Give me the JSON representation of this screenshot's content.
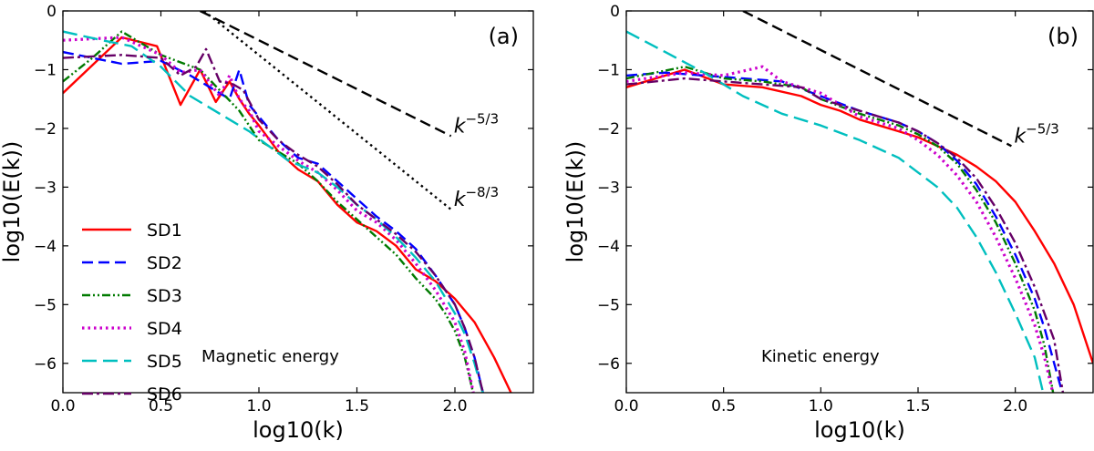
{
  "chart_data": [
    {
      "type": "line",
      "panel_label": "(a)",
      "annotation": "Magnetic energy",
      "xlabel": "log10(k)",
      "ylabel": "log10(E(k))",
      "xlim": [
        0.0,
        2.4
      ],
      "ylim": [
        -6.5,
        0.0
      ],
      "xticks": [
        0.0,
        0.5,
        1.0,
        1.5,
        2.0
      ],
      "yticks": [
        0,
        -1,
        -2,
        -3,
        -4,
        -5,
        -6
      ],
      "xtick_labels": [
        "0.0",
        "0.5",
        "1.0",
        "1.5",
        "2.0"
      ],
      "ytick_labels": [
        "0",
        "−1",
        "−2",
        "−3",
        "−4",
        "−5",
        "−6"
      ],
      "legend": {
        "position": "lower-left"
      },
      "series": [
        {
          "name": "SD1",
          "color": "#ff0000",
          "style": "solid",
          "x": [
            0.0,
            0.3,
            0.48,
            0.6,
            0.7,
            0.78,
            0.85,
            0.9,
            0.95,
            1.0,
            1.1,
            1.2,
            1.3,
            1.4,
            1.5,
            1.6,
            1.7,
            1.8,
            1.9,
            2.0,
            2.1,
            2.2,
            2.3
          ],
          "y": [
            -1.4,
            -0.45,
            -0.6,
            -1.6,
            -1.0,
            -1.55,
            -1.2,
            -1.5,
            -1.75,
            -1.95,
            -2.4,
            -2.7,
            -2.9,
            -3.3,
            -3.6,
            -3.75,
            -4.0,
            -4.4,
            -4.6,
            -4.9,
            -5.3,
            -5.9,
            -6.6
          ]
        },
        {
          "name": "SD2",
          "color": "#0000ff",
          "style": "dashed",
          "x": [
            0.0,
            0.3,
            0.5,
            0.65,
            0.75,
            0.85,
            0.9,
            0.95,
            1.0,
            1.1,
            1.2,
            1.3,
            1.4,
            1.5,
            1.6,
            1.7,
            1.8,
            1.9,
            2.0,
            2.05,
            2.1,
            2.15
          ],
          "y": [
            -0.7,
            -0.9,
            -0.85,
            -1.1,
            -1.3,
            -1.5,
            -1.0,
            -1.6,
            -1.8,
            -2.2,
            -2.5,
            -2.6,
            -2.9,
            -3.2,
            -3.5,
            -3.75,
            -4.05,
            -4.5,
            -5.0,
            -5.4,
            -5.9,
            -6.6
          ]
        },
        {
          "name": "SD3",
          "color": "#007a00",
          "style": "dashdotdot",
          "x": [
            0.0,
            0.15,
            0.3,
            0.5,
            0.7,
            0.9,
            1.0,
            1.1,
            1.2,
            1.3,
            1.4,
            1.5,
            1.6,
            1.7,
            1.8,
            1.9,
            1.95,
            2.0,
            2.05,
            2.1
          ],
          "y": [
            -1.2,
            -0.8,
            -0.35,
            -0.75,
            -1.0,
            -1.7,
            -2.2,
            -2.4,
            -2.6,
            -2.9,
            -3.25,
            -3.55,
            -3.85,
            -4.15,
            -4.55,
            -4.9,
            -5.15,
            -5.45,
            -5.9,
            -6.6
          ]
        },
        {
          "name": "SD4",
          "color": "#cc00cc",
          "style": "dotted",
          "x": [
            0.0,
            0.3,
            0.5,
            0.6,
            0.7,
            0.8,
            0.85,
            0.9,
            0.95,
            1.0,
            1.1,
            1.2,
            1.3,
            1.4,
            1.5,
            1.6,
            1.7,
            1.8,
            1.9,
            2.0,
            2.05,
            2.1
          ],
          "y": [
            -0.5,
            -0.45,
            -0.75,
            -1.05,
            -1.0,
            -1.45,
            -1.1,
            -1.5,
            -1.7,
            -2.05,
            -2.3,
            -2.55,
            -2.75,
            -3.05,
            -3.4,
            -3.6,
            -3.9,
            -4.3,
            -4.75,
            -5.3,
            -5.8,
            -6.6
          ]
        },
        {
          "name": "SD5",
          "color": "#00bfbf",
          "style": "longdash",
          "x": [
            0.0,
            0.2,
            0.35,
            0.5,
            0.65,
            0.8,
            0.95,
            1.05,
            1.15,
            1.3,
            1.4,
            1.5,
            1.6,
            1.7,
            1.8,
            1.9,
            2.0,
            2.05,
            2.1,
            2.15
          ],
          "y": [
            -0.35,
            -0.5,
            -0.6,
            -0.95,
            -1.45,
            -1.75,
            -2.05,
            -2.3,
            -2.55,
            -2.75,
            -3.0,
            -3.3,
            -3.55,
            -3.85,
            -4.2,
            -4.6,
            -5.15,
            -5.5,
            -6.0,
            -6.6
          ]
        },
        {
          "name": "SD6",
          "color": "#660066",
          "style": "dashdot",
          "x": [
            0.0,
            0.3,
            0.5,
            0.6,
            0.68,
            0.73,
            0.8,
            0.87,
            0.92,
            1.0,
            1.1,
            1.2,
            1.3,
            1.4,
            1.5,
            1.6,
            1.7,
            1.8,
            1.9,
            2.0,
            2.05,
            2.1,
            2.15
          ],
          "y": [
            -0.8,
            -0.75,
            -0.8,
            -1.1,
            -0.95,
            -0.65,
            -1.2,
            -1.25,
            -1.35,
            -1.85,
            -2.2,
            -2.45,
            -2.65,
            -2.95,
            -3.3,
            -3.55,
            -3.8,
            -4.1,
            -4.5,
            -5.0,
            -5.4,
            -5.9,
            -6.6
          ]
        }
      ],
      "reference_lines": [
        {
          "label_base": "k",
          "label_exp": "−5/3",
          "style": "dashed",
          "x": [
            0.7,
            1.98
          ],
          "y": [
            0.0,
            -2.13
          ]
        },
        {
          "label_base": "k",
          "label_exp": "−8/3",
          "style": "dotted",
          "x": [
            0.72,
            1.98
          ],
          "y": [
            0.0,
            -3.38
          ]
        }
      ]
    },
    {
      "type": "line",
      "panel_label": "(b)",
      "annotation": "Kinetic energy",
      "xlabel": "log10(k)",
      "ylabel": "log10(E(k))",
      "xlim": [
        0.0,
        2.4
      ],
      "ylim": [
        -6.5,
        0.0
      ],
      "xticks": [
        0.0,
        0.5,
        1.0,
        1.5,
        2.0
      ],
      "yticks": [
        0,
        -1,
        -2,
        -3,
        -4,
        -5,
        -6
      ],
      "xtick_labels": [
        "0.0",
        "0.5",
        "1.0",
        "1.5",
        "2.0"
      ],
      "ytick_labels": [
        "0",
        "−1",
        "−2",
        "−3",
        "−4",
        "−5",
        "−6"
      ],
      "series": [
        {
          "name": "SD1",
          "color": "#ff0000",
          "style": "solid",
          "x": [
            0.0,
            0.3,
            0.5,
            0.7,
            0.9,
            1.0,
            1.1,
            1.2,
            1.3,
            1.4,
            1.5,
            1.6,
            1.7,
            1.8,
            1.9,
            2.0,
            2.1,
            2.2,
            2.3,
            2.4
          ],
          "y": [
            -1.3,
            -1.0,
            -1.25,
            -1.3,
            -1.45,
            -1.6,
            -1.7,
            -1.85,
            -1.95,
            -2.05,
            -2.15,
            -2.3,
            -2.45,
            -2.65,
            -2.9,
            -3.25,
            -3.75,
            -4.3,
            -5.0,
            -6.0
          ]
        },
        {
          "name": "SD2",
          "color": "#0000ff",
          "style": "dashed",
          "x": [
            0.0,
            0.2,
            0.4,
            0.6,
            0.8,
            1.0,
            1.2,
            1.4,
            1.5,
            1.6,
            1.7,
            1.8,
            1.9,
            2.0,
            2.1,
            2.15,
            2.2,
            2.25
          ],
          "y": [
            -1.1,
            -1.05,
            -1.1,
            -1.15,
            -1.2,
            -1.45,
            -1.7,
            -1.9,
            -2.05,
            -2.25,
            -2.55,
            -2.95,
            -3.5,
            -4.15,
            -4.9,
            -5.4,
            -6.0,
            -6.6
          ]
        },
        {
          "name": "SD3",
          "color": "#007a00",
          "style": "dashdotdot",
          "x": [
            0.0,
            0.3,
            0.5,
            0.7,
            0.9,
            1.0,
            1.2,
            1.4,
            1.5,
            1.6,
            1.7,
            1.8,
            1.9,
            2.0,
            2.1,
            2.15,
            2.2
          ],
          "y": [
            -1.15,
            -0.95,
            -1.15,
            -1.2,
            -1.3,
            -1.5,
            -1.75,
            -1.95,
            -2.1,
            -2.3,
            -2.6,
            -3.05,
            -3.6,
            -4.3,
            -5.1,
            -5.7,
            -6.6
          ]
        },
        {
          "name": "SD4",
          "color": "#cc00cc",
          "style": "dotted",
          "x": [
            0.0,
            0.3,
            0.5,
            0.7,
            0.8,
            1.0,
            1.2,
            1.4,
            1.5,
            1.6,
            1.7,
            1.8,
            1.9,
            2.0,
            2.1,
            2.15,
            2.2
          ],
          "y": [
            -1.2,
            -1.05,
            -1.1,
            -0.95,
            -1.2,
            -1.4,
            -1.8,
            -2.0,
            -2.2,
            -2.45,
            -2.8,
            -3.25,
            -3.85,
            -4.55,
            -5.35,
            -5.9,
            -6.6
          ]
        },
        {
          "name": "SD5",
          "color": "#00bfbf",
          "style": "longdash",
          "x": [
            0.0,
            0.2,
            0.4,
            0.6,
            0.8,
            1.0,
            1.2,
            1.4,
            1.5,
            1.6,
            1.7,
            1.8,
            1.9,
            2.0,
            2.1,
            2.15
          ],
          "y": [
            -0.35,
            -0.7,
            -1.05,
            -1.45,
            -1.75,
            -1.95,
            -2.2,
            -2.5,
            -2.75,
            -3.0,
            -3.35,
            -3.85,
            -4.45,
            -5.15,
            -5.9,
            -6.6
          ]
        },
        {
          "name": "SD6",
          "color": "#660066",
          "style": "dashdot",
          "x": [
            0.0,
            0.3,
            0.5,
            0.7,
            0.9,
            1.0,
            1.2,
            1.4,
            1.5,
            1.6,
            1.7,
            1.8,
            1.9,
            2.0,
            2.1,
            2.2,
            2.25
          ],
          "y": [
            -1.25,
            -1.15,
            -1.2,
            -1.25,
            -1.3,
            -1.5,
            -1.7,
            -1.9,
            -2.05,
            -2.25,
            -2.5,
            -2.85,
            -3.35,
            -3.95,
            -4.7,
            -5.6,
            -6.6
          ]
        }
      ],
      "reference_lines": [
        {
          "label_base": "k",
          "label_exp": "−5/3",
          "style": "dashed",
          "x": [
            0.6,
            1.98
          ],
          "y": [
            0.0,
            -2.3
          ]
        }
      ]
    }
  ]
}
